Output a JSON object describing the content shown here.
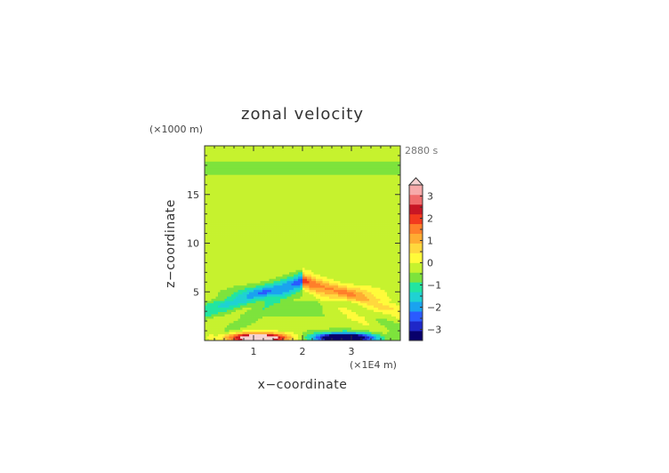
{
  "chart_data": {
    "type": "heatmap",
    "title": "zonal velocity",
    "xlabel": "x−coordinate",
    "ylabel": "z−coordinate",
    "x_scale_note": "(×1E4 m)",
    "y_scale_note": "(×1000 m)",
    "time_label": "2880 s",
    "xlim": [
      0,
      4
    ],
    "ylim": [
      0,
      20
    ],
    "x_ticks": [
      {
        "value": 1,
        "label": "1"
      },
      {
        "value": 2,
        "label": "2"
      },
      {
        "value": 3,
        "label": "3"
      }
    ],
    "y_ticks": [
      {
        "value": 5,
        "label": "5"
      },
      {
        "value": 10,
        "label": "10"
      },
      {
        "value": 15,
        "label": "15"
      }
    ],
    "colorbar": {
      "min": -3.5,
      "max": 3.5,
      "step": 0.5,
      "extend": "max",
      "ticks": [
        {
          "value": 3,
          "label": "3"
        },
        {
          "value": 2,
          "label": "2"
        },
        {
          "value": 1,
          "label": "1"
        },
        {
          "value": 0,
          "label": "0"
        },
        {
          "value": -1,
          "label": "−1"
        },
        {
          "value": -2,
          "label": "−2"
        },
        {
          "value": -3,
          "label": "−3"
        }
      ],
      "colors": [
        "#08006b",
        "#1f27c8",
        "#2a5bff",
        "#1aa3ef",
        "#1fd2d2",
        "#22e5a0",
        "#7de33c",
        "#c6f22e",
        "#fffb3a",
        "#ffd83d",
        "#ffac32",
        "#ff7f2a",
        "#f23a1e",
        "#c81624",
        "#f06b6b",
        "#f7aaaa"
      ],
      "extend_color": "#f7d2d2"
    },
    "field_description_values": {
      "background_bands": [
        {
          "z_from": 0,
          "z_to": 2.5,
          "value": 0.1
        },
        {
          "z_from": 2.5,
          "z_to": 4.0,
          "value": -0.1
        },
        {
          "z_from": 4.0,
          "z_to": 10.0,
          "value": 0.2
        },
        {
          "z_from": 10.0,
          "z_to": 13.5,
          "value": 0.2
        },
        {
          "z_from": 13.5,
          "z_to": 17.0,
          "value": 0.2
        },
        {
          "z_from": 17.0,
          "z_to": 18.5,
          "value": -0.1
        },
        {
          "z_from": 18.5,
          "z_to": 20.0,
          "value": 0.2
        }
      ],
      "peak_negative": -3.4,
      "peak_positive": 3.2
    }
  }
}
